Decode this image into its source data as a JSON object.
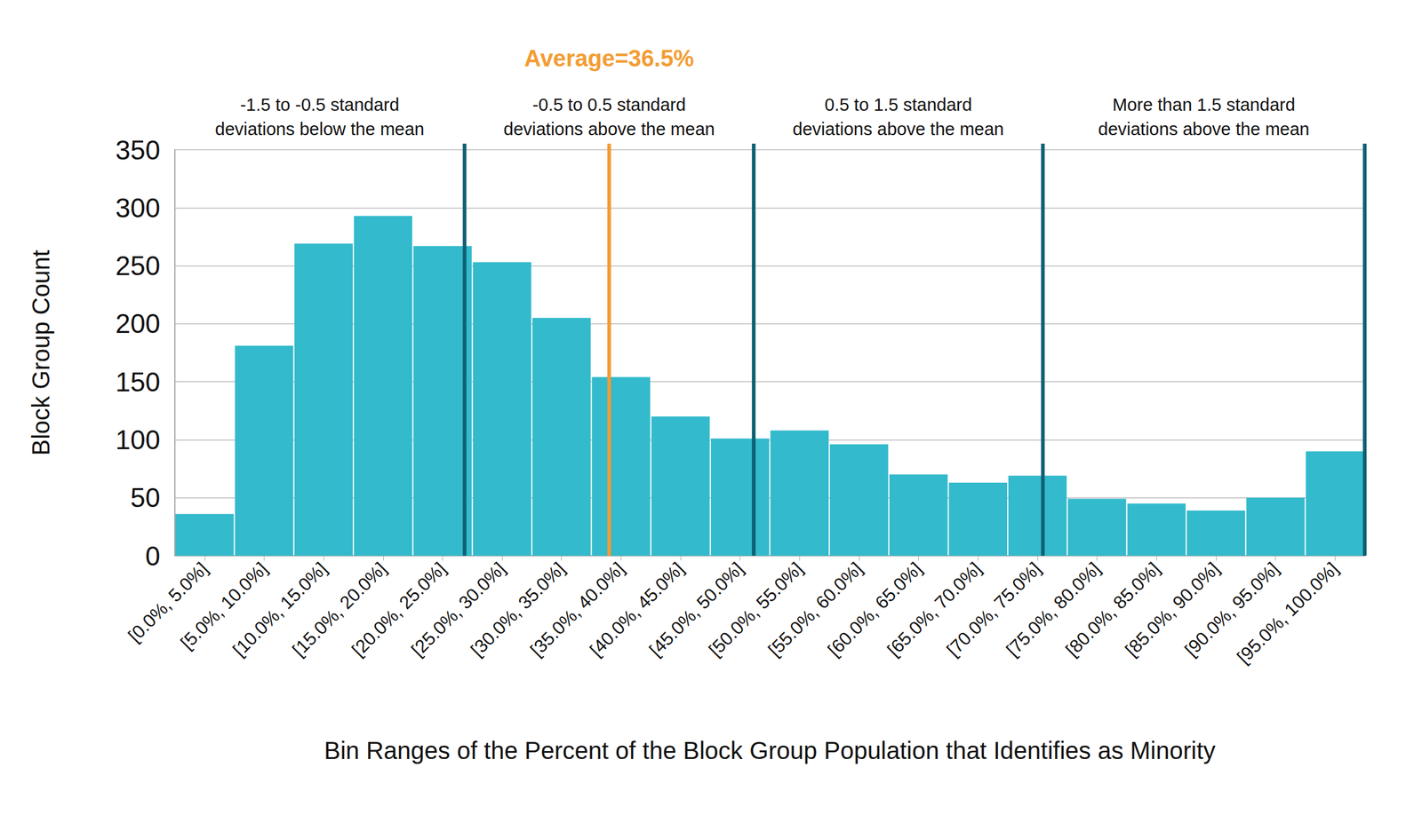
{
  "chart_data": {
    "type": "bar",
    "x_label": "Bin Ranges of the Percent of the Block Group Population that Identifies as Minority",
    "y_label": "Block Group Count",
    "categories": [
      "[0.0%, 5.0%]",
      "[5.0%, 10.0%]",
      "[10.0%, 15.0%]",
      "[15.0%, 20.0%]",
      "[20.0%, 25.0%]",
      "[25.0%, 30.0%]",
      "[30.0%, 35.0%]",
      "[35.0%, 40.0%]",
      "[40.0%, 45.0%]",
      "[45.0%, 50.0%]",
      "[50.0%, 55.0%]",
      "[55.0%, 60.0%]",
      "[60.0%, 65.0%]",
      "[65.0%, 70.0%]",
      "[70.0%, 75.0%]",
      "[75.0%, 80.0%]",
      "[80.0%, 85.0%]",
      "[85.0%, 90.0%]",
      "[90.0%, 95.0%]",
      "[95.0%, 100.0%]"
    ],
    "values": [
      36,
      181,
      269,
      293,
      267,
      253,
      205,
      154,
      120,
      101,
      108,
      96,
      70,
      63,
      69,
      49,
      45,
      39,
      50,
      90
    ],
    "color": "#33bacc",
    "xlim": [
      0,
      100
    ],
    "ylim": [
      0,
      350
    ],
    "yticks": [
      0,
      50,
      100,
      150,
      200,
      250,
      300,
      350
    ],
    "grid": true,
    "average_line": {
      "label": "Average=36.5%",
      "value": 36.5,
      "color": "#f39c32"
    },
    "bands": {
      "color": "#0e6174",
      "items": [
        {
          "label": "-1.5 to -0.5 standard\ndeviations below the mean",
          "x_start": 0,
          "x_end": 24.35
        },
        {
          "label": "-0.5 to 0.5 standard\ndeviations above the mean",
          "x_start": 24.35,
          "x_end": 48.65
        },
        {
          "label": "0.5 to 1.5 standard\ndeviations above the mean",
          "x_start": 48.65,
          "x_end": 72.95
        },
        {
          "label": "More than 1.5 standard\ndeviations above the mean",
          "x_start": 72.95,
          "x_end": 100
        }
      ]
    }
  }
}
